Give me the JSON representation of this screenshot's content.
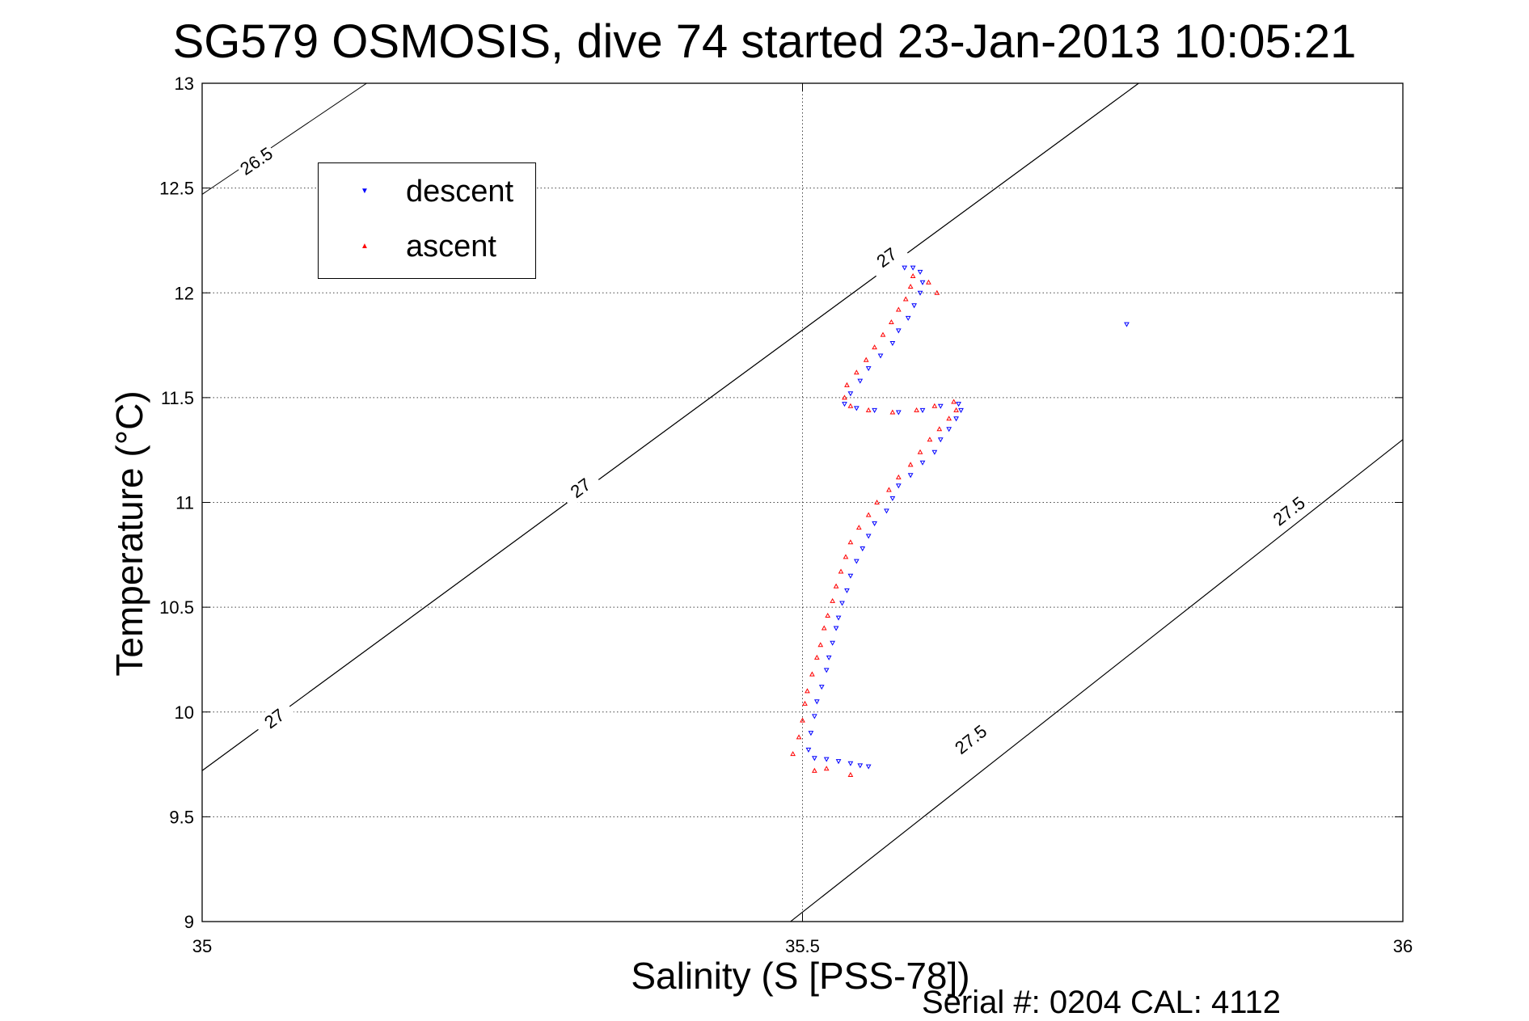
{
  "chart_data": {
    "type": "scatter",
    "title": "SG579 OSMOSIS, dive 74 started 23-Jan-2013 10:05:21",
    "xlabel": "Salinity (S [PSS-78])",
    "ylabel": "Temperature (°C)",
    "footnote": "Serial #: 0204  CAL: 4112",
    "xlim": [
      35,
      36
    ],
    "ylim": [
      9,
      13
    ],
    "xticks": [
      "35",
      "35.5",
      "36"
    ],
    "yticks": [
      "9",
      "9.5",
      "10",
      "10.5",
      "11",
      "11.5",
      "12",
      "12.5",
      "13"
    ],
    "grid": true,
    "legend_position": "top-left",
    "contours": [
      {
        "label": "26.5",
        "points": [
          [
            35.0,
            12.47
          ],
          [
            35.137,
            13.0
          ]
        ],
        "label_at": [
          35.045,
          12.63
        ]
      },
      {
        "label": "27",
        "points": [
          [
            35.0,
            9.72
          ],
          [
            35.78,
            13.0
          ]
        ],
        "label_at": [
          35.315,
          11.07
        ]
      },
      {
        "label": "27",
        "points": [
          [
            35.0,
            9.72
          ],
          [
            35.78,
            13.0
          ]
        ],
        "label_at": [
          35.06,
          9.97
        ]
      },
      {
        "label": "27",
        "points": [
          [
            35.0,
            9.72
          ],
          [
            35.78,
            13.0
          ]
        ],
        "label_at": [
          35.57,
          12.17
        ]
      },
      {
        "label": "27.5",
        "points": [
          [
            35.49,
            9.0
          ],
          [
            36.0,
            11.3
          ]
        ],
        "label_at": [
          35.905,
          10.96
        ]
      },
      {
        "label": "27.5",
        "points": [
          [
            35.49,
            9.0
          ],
          [
            36.0,
            11.3
          ]
        ],
        "label_at": [
          35.64,
          9.87
        ]
      }
    ],
    "series": [
      {
        "name": "descent",
        "color": "#0000ff",
        "marker": "triangle-down",
        "points": [
          [
            35.77,
            11.85
          ],
          [
            35.555,
            9.74
          ],
          [
            35.548,
            9.745
          ],
          [
            35.54,
            9.755
          ],
          [
            35.53,
            9.765
          ],
          [
            35.52,
            9.775
          ],
          [
            35.51,
            9.78
          ],
          [
            35.505,
            9.82
          ],
          [
            35.507,
            9.9
          ],
          [
            35.51,
            9.98
          ],
          [
            35.512,
            10.05
          ],
          [
            35.516,
            10.12
          ],
          [
            35.52,
            10.2
          ],
          [
            35.522,
            10.26
          ],
          [
            35.525,
            10.33
          ],
          [
            35.528,
            10.4
          ],
          [
            35.53,
            10.45
          ],
          [
            35.533,
            10.52
          ],
          [
            35.537,
            10.58
          ],
          [
            35.54,
            10.65
          ],
          [
            35.545,
            10.72
          ],
          [
            35.55,
            10.78
          ],
          [
            35.555,
            10.84
          ],
          [
            35.56,
            10.9
          ],
          [
            35.57,
            10.96
          ],
          [
            35.575,
            11.02
          ],
          [
            35.58,
            11.08
          ],
          [
            35.59,
            11.13
          ],
          [
            35.6,
            11.19
          ],
          [
            35.61,
            11.24
          ],
          [
            35.615,
            11.3
          ],
          [
            35.622,
            11.35
          ],
          [
            35.628,
            11.4
          ],
          [
            35.632,
            11.44
          ],
          [
            35.63,
            11.47
          ],
          [
            35.615,
            11.46
          ],
          [
            35.6,
            11.44
          ],
          [
            35.58,
            11.43
          ],
          [
            35.56,
            11.44
          ],
          [
            35.545,
            11.45
          ],
          [
            35.535,
            11.47
          ],
          [
            35.54,
            11.52
          ],
          [
            35.548,
            11.58
          ],
          [
            35.555,
            11.64
          ],
          [
            35.565,
            11.7
          ],
          [
            35.575,
            11.76
          ],
          [
            35.58,
            11.82
          ],
          [
            35.588,
            11.88
          ],
          [
            35.593,
            11.94
          ],
          [
            35.598,
            12.0
          ],
          [
            35.6,
            12.05
          ],
          [
            35.598,
            12.1
          ],
          [
            35.592,
            12.12
          ],
          [
            35.585,
            12.12
          ]
        ]
      },
      {
        "name": "ascent",
        "color": "#ff0000",
        "marker": "triangle-up",
        "points": [
          [
            35.492,
            9.8
          ],
          [
            35.497,
            9.88
          ],
          [
            35.5,
            9.96
          ],
          [
            35.502,
            10.04
          ],
          [
            35.504,
            10.1
          ],
          [
            35.508,
            10.18
          ],
          [
            35.512,
            10.26
          ],
          [
            35.515,
            10.32
          ],
          [
            35.518,
            10.4
          ],
          [
            35.521,
            10.46
          ],
          [
            35.525,
            10.53
          ],
          [
            35.528,
            10.6
          ],
          [
            35.532,
            10.67
          ],
          [
            35.536,
            10.74
          ],
          [
            35.54,
            10.81
          ],
          [
            35.547,
            10.88
          ],
          [
            35.555,
            10.94
          ],
          [
            35.562,
            11.0
          ],
          [
            35.572,
            11.06
          ],
          [
            35.58,
            11.12
          ],
          [
            35.59,
            11.18
          ],
          [
            35.598,
            11.24
          ],
          [
            35.606,
            11.3
          ],
          [
            35.614,
            11.35
          ],
          [
            35.622,
            11.4
          ],
          [
            35.628,
            11.44
          ],
          [
            35.626,
            11.48
          ],
          [
            35.61,
            11.46
          ],
          [
            35.595,
            11.44
          ],
          [
            35.575,
            11.43
          ],
          [
            35.555,
            11.44
          ],
          [
            35.54,
            11.46
          ],
          [
            35.535,
            11.5
          ],
          [
            35.537,
            11.56
          ],
          [
            35.545,
            11.62
          ],
          [
            35.553,
            11.68
          ],
          [
            35.56,
            11.74
          ],
          [
            35.567,
            11.8
          ],
          [
            35.574,
            11.86
          ],
          [
            35.58,
            11.92
          ],
          [
            35.586,
            11.97
          ],
          [
            35.59,
            12.03
          ],
          [
            35.592,
            12.08
          ],
          [
            35.605,
            12.05
          ],
          [
            35.612,
            12.0
          ],
          [
            35.51,
            9.72
          ],
          [
            35.52,
            9.73
          ],
          [
            35.54,
            9.7
          ]
        ]
      }
    ]
  }
}
